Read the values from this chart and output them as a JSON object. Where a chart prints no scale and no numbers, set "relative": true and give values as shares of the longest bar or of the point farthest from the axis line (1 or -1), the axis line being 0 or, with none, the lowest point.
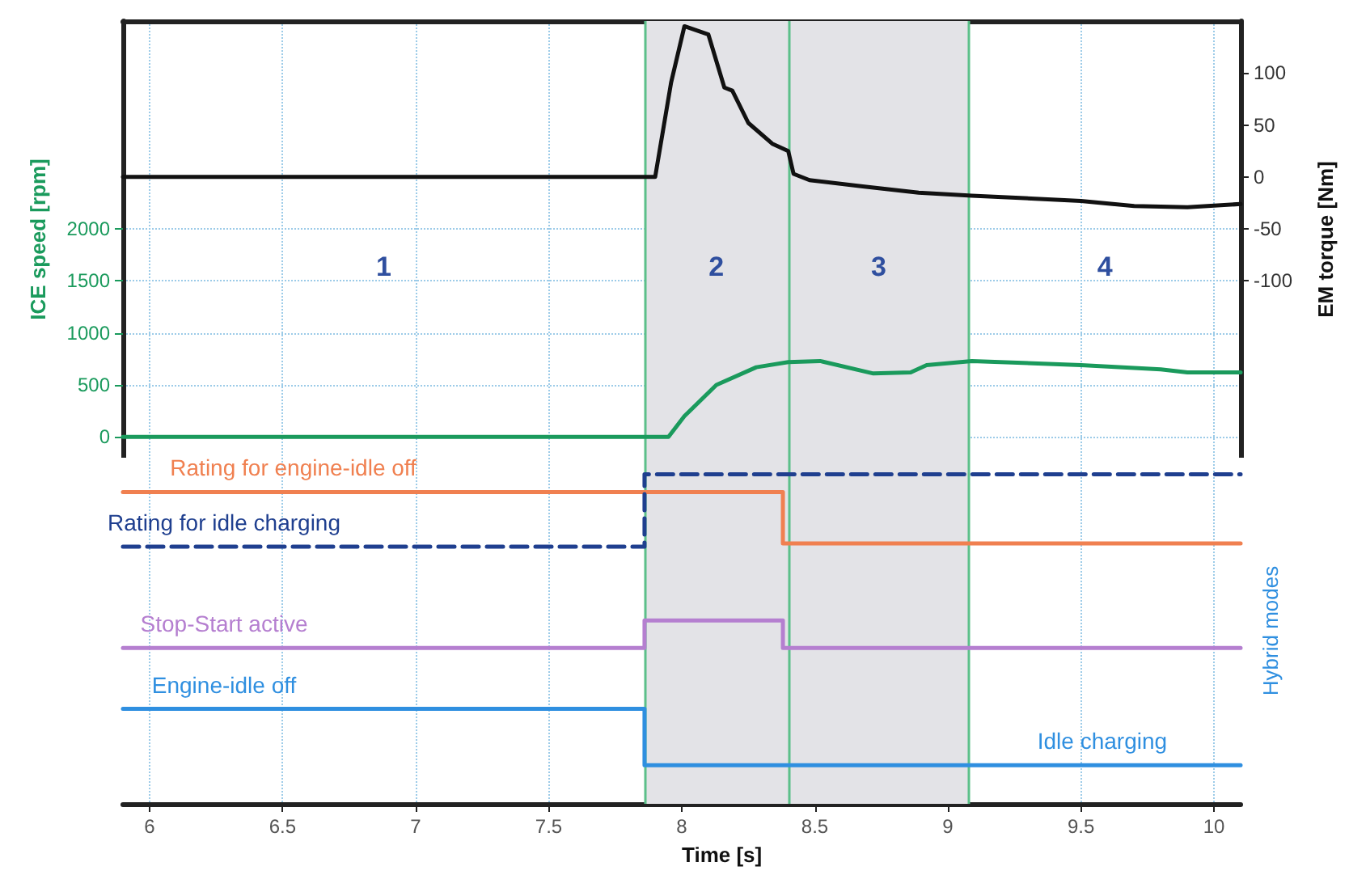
{
  "chart_data": [
    {
      "type": "line",
      "ylabel": "ICE speed [rpm]",
      "y2label": "EM torque [Nm]",
      "xlim": [
        5.9,
        10.1
      ],
      "xticks": [
        6.0,
        6.5,
        7.0,
        7.5,
        8.0,
        8.5,
        9.0,
        9.5,
        10.0
      ],
      "ylim": [
        -200,
        4000
      ],
      "yticks": [
        0,
        500,
        1000,
        1500,
        2000
      ],
      "y2lim": [
        -270,
        150
      ],
      "y2ticks": [
        -100,
        -50,
        0,
        50,
        100
      ],
      "tick_labels": "y",
      "grid": true,
      "legend": false,
      "marker": "none",
      "bands": [
        {
          "axis": "x",
          "from": 7.86,
          "to": 9.08,
          "color": "#e3e3e7"
        }
      ],
      "ref_lines": [
        {
          "axis": "x",
          "value": 7.86,
          "color": "#5cc08a"
        },
        {
          "axis": "x",
          "value": 8.4,
          "color": "#5cc08a"
        },
        {
          "axis": "x",
          "value": 9.08,
          "color": "#5cc08a"
        }
      ],
      "annotations": [
        "1",
        "2",
        "3",
        "4"
      ],
      "series": [
        {
          "color": "#111111",
          "axis": "y2",
          "x": [
            5.9,
            7.9,
            7.96,
            8.01,
            8.1,
            8.16,
            8.19,
            8.25,
            8.34,
            8.4,
            8.42,
            8.48,
            8.68,
            8.89,
            9.09,
            9.5,
            9.7,
            9.9,
            10.1
          ],
          "values": [
            0,
            0,
            91,
            145,
            137,
            86,
            83,
            52,
            32,
            25,
            3,
            -3,
            -9,
            -15,
            -18,
            -23,
            -28,
            -29,
            -26
          ]
        },
        {
          "color": "#1a9a5c",
          "x": [
            5.9,
            7.95,
            8.01,
            8.13,
            8.28,
            8.4,
            8.52,
            8.72,
            8.86,
            8.92,
            9.09,
            9.5,
            9.8,
            9.9,
            10.1
          ],
          "values": [
            0,
            0,
            200,
            500,
            670,
            720,
            730,
            610,
            620,
            690,
            730,
            690,
            650,
            620,
            620
          ]
        }
      ]
    },
    {
      "type": "step",
      "relative": true,
      "xlabel": "Time [s]",
      "y2label": "Hybrid modes",
      "xlim": [
        5.9,
        10.1
      ],
      "xticks": [
        6.0,
        6.5,
        7.0,
        7.5,
        8.0,
        8.5,
        9.0,
        9.5,
        10.0
      ],
      "tick_labels": "x",
      "grid": "x",
      "legend": false,
      "marker": "none",
      "bands": [
        {
          "axis": "x",
          "from": 7.86,
          "to": 9.08,
          "color": "#e3e3e7"
        }
      ],
      "ref_lines": [
        {
          "axis": "x",
          "value": 7.86,
          "color": "#5cc08a"
        },
        {
          "axis": "x",
          "value": 8.4,
          "color": "#5cc08a"
        },
        {
          "axis": "x",
          "value": 9.08,
          "color": "#5cc08a"
        }
      ],
      "annotations": [
        "Idle charging"
      ],
      "series": [
        {
          "name": "Rating for engine-idle off",
          "color": "#f08050",
          "x": [
            5.9,
            8.38,
            10.1
          ],
          "values": [
            0.946,
            0.79,
            0.79
          ]
        },
        {
          "name": "Rating for idle charging",
          "color": "#1f3f8f",
          "line_style": "dashed",
          "x": [
            5.9,
            7.86,
            10.1
          ],
          "values": [
            0.78,
            1,
            1
          ]
        },
        {
          "name": "Stop-Start active",
          "color": "#b57fd0",
          "x": [
            5.9,
            7.86,
            8.38,
            10.1
          ],
          "values": [
            0.473,
            0.556,
            0.473,
            0.473
          ]
        },
        {
          "name": "Engine-idle off",
          "color": "#2f8fe0",
          "x": [
            5.9,
            7.86,
            10.1
          ],
          "values": [
            0.288,
            0.117,
            0.117
          ]
        }
      ]
    }
  ]
}
